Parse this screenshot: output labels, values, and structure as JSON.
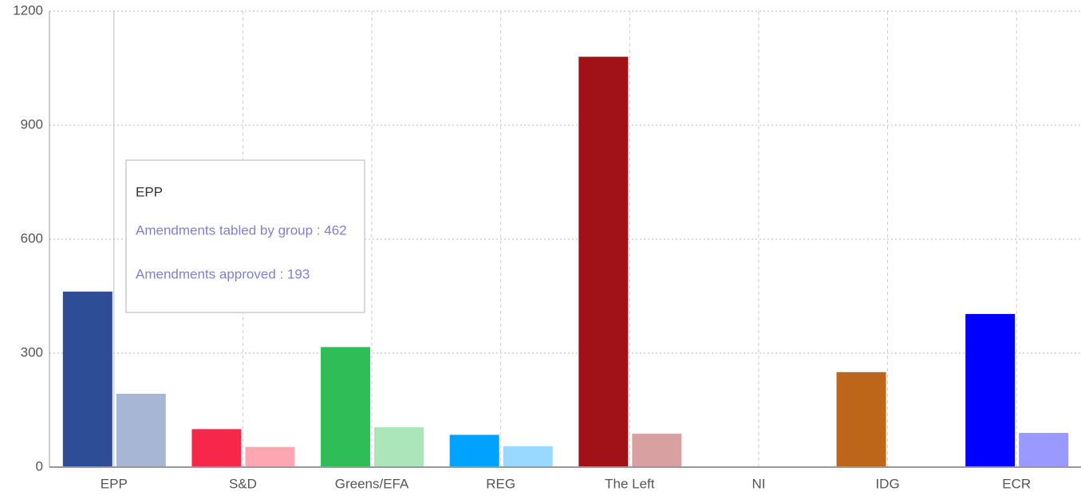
{
  "chart_data": {
    "type": "bar",
    "categories": [
      "EPP",
      "S&D",
      "Greens/EFA",
      "REG",
      "The Left",
      "NI",
      "IDG",
      "ECR"
    ],
    "series": [
      {
        "name": "Amendments tabled by group",
        "colors": [
          "#2d4e96",
          "#f7274a",
          "#2fbd57",
          "#00a2ff",
          "#a01218",
          "#888888",
          "#bd6519",
          "#0000ff"
        ],
        "values": [
          462,
          100,
          316,
          85,
          1080,
          0,
          250,
          403
        ]
      },
      {
        "name": "Amendments approved",
        "colors": [
          "#a8b6d6",
          "#fda7b3",
          "#abe5ba",
          "#99d9ff",
          "#d9a0a2",
          "#cccccc",
          "#e5c1a3",
          "#9999ff"
        ],
        "values": [
          193,
          53,
          105,
          55,
          88,
          0,
          0,
          90
        ]
      }
    ],
    "ylim": [
      0,
      1200
    ],
    "yticks": [
      0,
      300,
      600,
      900,
      1200
    ],
    "grid": true,
    "tooltip": {
      "title": "EPP",
      "lines": [
        "Amendments tabled by group : 462",
        "Amendments approved : 193"
      ],
      "color": "#8080d0"
    }
  }
}
